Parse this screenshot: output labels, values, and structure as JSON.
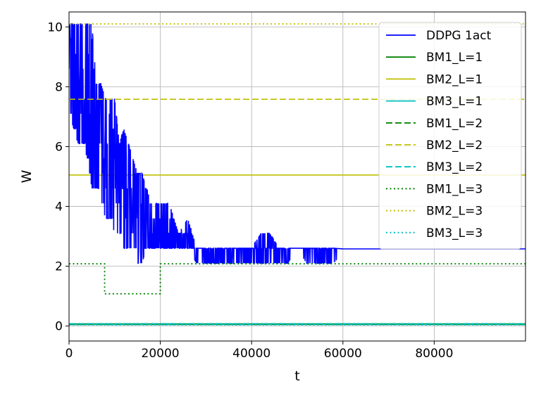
{
  "chart_data": {
    "type": "line",
    "xlabel": "t",
    "ylabel": "W",
    "xlim": [
      0,
      100000
    ],
    "ylim": [
      -0.5,
      10.5
    ],
    "grid": true,
    "legend_position": "top-right",
    "x_ticks": [
      0,
      20000,
      40000,
      60000,
      80000
    ],
    "x_tick_labels": [
      "0",
      "20000",
      "40000",
      "60000",
      "80000"
    ],
    "y_ticks": [
      0,
      2,
      4,
      6,
      8,
      10
    ],
    "y_tick_labels": [
      "0",
      "2",
      "4",
      "6",
      "8",
      "10"
    ],
    "series": [
      {
        "name": "DDPG 1act",
        "color": "#0000ff",
        "style": "solid",
        "x": [
          0,
          1000,
          2000,
          3000,
          4000,
          5000,
          6000,
          7000,
          8000,
          9000,
          10000,
          11000,
          12000,
          13000,
          14000,
          15000,
          16000,
          17000,
          18000,
          19000,
          20000,
          22000,
          24000,
          26000,
          28000,
          30000,
          32000,
          34000,
          36000,
          38000,
          40000,
          42000,
          44000,
          46000,
          48000,
          50000,
          52000,
          54000,
          56000,
          58000,
          60000,
          100000
        ],
        "y": [
          9.0,
          9.2,
          8.8,
          8.2,
          8.0,
          7.2,
          6.8,
          6.3,
          5.9,
          5.6,
          5.2,
          4.8,
          4.4,
          4.0,
          3.7,
          3.5,
          3.3,
          3.2,
          3.1,
          3.0,
          3.0,
          2.9,
          2.85,
          2.8,
          2.4,
          2.35,
          2.35,
          2.35,
          2.35,
          2.4,
          2.5,
          2.6,
          2.4,
          2.35,
          2.35,
          2.6,
          2.6,
          2.35,
          2.35,
          2.55,
          2.58,
          2.58
        ],
        "upper": [
          10.1,
          10.1,
          10.1,
          10.1,
          10.1,
          10.1,
          8.1,
          8.1,
          7.6,
          7.6,
          7.6,
          6.1,
          6.6,
          6.1,
          5.6,
          5.1,
          5.1,
          4.6,
          4.1,
          4.1,
          4.1,
          4.1,
          3.1,
          3.6,
          2.6,
          2.6,
          2.6,
          2.6,
          2.6,
          2.6,
          2.6,
          3.1,
          3.1,
          2.6,
          2.6,
          2.6,
          2.6,
          2.6,
          2.6,
          2.6,
          2.58,
          2.58
        ],
        "lower": [
          7.1,
          6.6,
          6.1,
          6.1,
          5.6,
          4.6,
          4.6,
          4.1,
          3.6,
          3.6,
          3.1,
          3.1,
          2.6,
          2.6,
          2.6,
          2.1,
          2.1,
          2.6,
          2.6,
          2.6,
          2.6,
          2.6,
          2.6,
          2.6,
          2.1,
          2.1,
          2.1,
          2.1,
          2.1,
          2.1,
          2.1,
          2.1,
          2.1,
          2.1,
          2.1,
          2.6,
          2.1,
          2.1,
          2.1,
          2.1,
          2.58,
          2.58
        ]
      },
      {
        "name": "BM1_L=1",
        "color": "#008000",
        "style": "solid",
        "x": [
          0,
          100000
        ],
        "y": [
          0.07,
          0.07
        ]
      },
      {
        "name": "BM2_L=1",
        "color": "#bfbf00",
        "style": "solid",
        "x": [
          0,
          100000
        ],
        "y": [
          5.05,
          5.05
        ]
      },
      {
        "name": "BM3_L=1",
        "color": "#00bfbf",
        "style": "solid",
        "x": [
          0,
          100000
        ],
        "y": [
          0.05,
          0.05
        ]
      },
      {
        "name": "BM1_L=2",
        "color": "#008000",
        "style": "dashed",
        "x": [
          0,
          100000
        ],
        "y": [
          0.06,
          0.06
        ]
      },
      {
        "name": "BM2_L=2",
        "color": "#bfbf00",
        "style": "dashed",
        "x": [
          0,
          100000
        ],
        "y": [
          7.58,
          7.58
        ]
      },
      {
        "name": "BM3_L=2",
        "color": "#00bfbf",
        "style": "dashed",
        "x": [
          0,
          100000
        ],
        "y": [
          0.08,
          0.08
        ]
      },
      {
        "name": "BM1_L=3",
        "color": "#008000",
        "style": "dotted",
        "x": [
          0,
          7800,
          7800,
          20000,
          20000,
          100000
        ],
        "y": [
          2.08,
          2.08,
          1.08,
          1.08,
          2.08,
          2.08
        ]
      },
      {
        "name": "BM2_L=3",
        "color": "#bfbf00",
        "style": "dotted",
        "x": [
          0,
          100000
        ],
        "y": [
          10.1,
          10.1
        ]
      },
      {
        "name": "BM3_L=3",
        "color": "#00bfbf",
        "style": "dotted",
        "x": [
          0,
          100000
        ],
        "y": [
          0.04,
          0.04
        ]
      }
    ]
  }
}
